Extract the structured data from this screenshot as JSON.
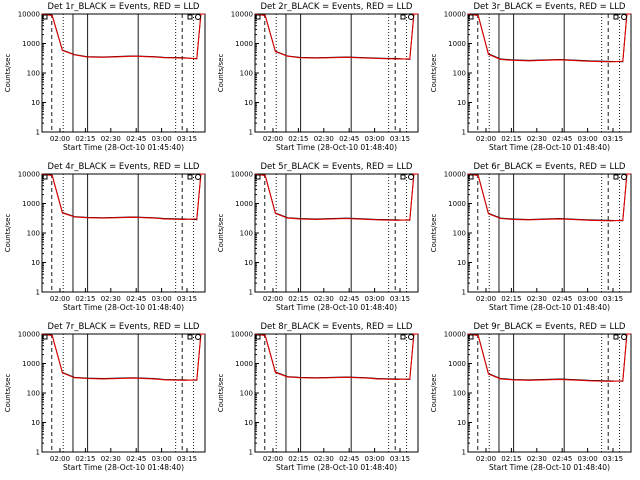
{
  "window": {
    "title": ""
  },
  "chart_data": [
    {
      "type": "line",
      "title": "Det 1r_BLACK = Events, RED = LLD",
      "xlabel": "Start Time (28-Oct-10 01:45:40)",
      "ylabel": "Counts/sec",
      "yscale": "log",
      "ylim": [
        1,
        10000
      ],
      "x_ticks": [
        "02:00",
        "02:15",
        "02:30",
        "02:45",
        "03:00",
        "03:15"
      ],
      "y_ticks": [
        "1",
        "10",
        "100",
        "1000",
        "10000"
      ],
      "series": [
        {
          "color": "#000000",
          "x": [
            0,
            5,
            10,
            16,
            22,
            30,
            45,
            55,
            60,
            70,
            76,
            78,
            80
          ],
          "y": [
            10000,
            9000,
            600,
            420,
            360,
            350,
            380,
            360,
            340,
            330,
            300,
            10000,
            10000
          ]
        },
        {
          "color": "#e00000",
          "x": [
            0,
            5,
            10,
            16,
            22,
            30,
            45,
            55,
            60,
            70,
            76,
            78,
            80
          ],
          "y": [
            10000,
            8800,
            580,
            410,
            350,
            340,
            370,
            350,
            330,
            320,
            310,
            10000,
            10000
          ]
        }
      ]
    },
    {
      "type": "line",
      "title": "Det 2r_BLACK = Events, RED = LLD",
      "xlabel": "Start Time (28-Oct-10 01:48:40)",
      "ylabel": "Counts/sec",
      "yscale": "log",
      "ylim": [
        1,
        10000
      ],
      "x_ticks": [
        "02:00",
        "02:15",
        "02:30",
        "02:45",
        "03:00",
        "03:15"
      ],
      "y_ticks": [
        "1",
        "10",
        "100",
        "1000",
        "10000"
      ],
      "series": [
        {
          "color": "#000000",
          "x": [
            0,
            5,
            10,
            16,
            22,
            30,
            45,
            55,
            60,
            70,
            76,
            78,
            80
          ],
          "y": [
            10000,
            9000,
            550,
            380,
            340,
            330,
            350,
            330,
            320,
            310,
            290,
            10000,
            10000
          ]
        },
        {
          "color": "#e00000",
          "x": [
            0,
            5,
            10,
            16,
            22,
            30,
            45,
            55,
            60,
            70,
            76,
            78,
            80
          ],
          "y": [
            10000,
            8800,
            530,
            370,
            330,
            320,
            340,
            320,
            310,
            300,
            300,
            10000,
            10000
          ]
        }
      ]
    },
    {
      "type": "line",
      "title": "Det 3r_BLACK = Events, RED = LLD",
      "xlabel": "Start Time (28-Oct-10 01:48:40)",
      "ylabel": "Counts/sec",
      "yscale": "log",
      "ylim": [
        1,
        10000
      ],
      "x_ticks": [
        "02:00",
        "02:15",
        "02:30",
        "02:45",
        "03:00",
        "03:15"
      ],
      "y_ticks": [
        "1",
        "10",
        "100",
        "1000",
        "10000"
      ],
      "series": [
        {
          "color": "#000000",
          "x": [
            0,
            5,
            10,
            16,
            22,
            30,
            45,
            55,
            60,
            70,
            76,
            78,
            80
          ],
          "y": [
            10000,
            9000,
            450,
            300,
            280,
            270,
            290,
            270,
            260,
            250,
            240,
            10000,
            10000
          ]
        },
        {
          "color": "#e00000",
          "x": [
            0,
            5,
            10,
            16,
            22,
            30,
            45,
            55,
            60,
            70,
            76,
            78,
            80
          ],
          "y": [
            10000,
            8800,
            430,
            290,
            270,
            260,
            280,
            260,
            250,
            240,
            250,
            10000,
            10000
          ]
        }
      ]
    },
    {
      "type": "line",
      "title": "Det 4r_BLACK = Events, RED = LLD",
      "xlabel": "Start Time (28-Oct-10 01:48:40)",
      "ylabel": "Counts/sec",
      "yscale": "log",
      "ylim": [
        1,
        10000
      ],
      "x_ticks": [
        "02:00",
        "02:15",
        "02:30",
        "02:45",
        "03:00",
        "03:15"
      ],
      "y_ticks": [
        "1",
        "10",
        "100",
        "1000",
        "10000"
      ],
      "series": [
        {
          "color": "#000000",
          "x": [
            0,
            5,
            10,
            16,
            22,
            30,
            45,
            55,
            60,
            70,
            76,
            78,
            80
          ],
          "y": [
            10000,
            9000,
            500,
            360,
            340,
            330,
            350,
            330,
            310,
            300,
            280,
            10000,
            10000
          ]
        },
        {
          "color": "#e00000",
          "x": [
            0,
            5,
            10,
            16,
            22,
            30,
            45,
            55,
            60,
            70,
            76,
            78,
            80
          ],
          "y": [
            10000,
            8800,
            480,
            350,
            330,
            320,
            340,
            320,
            300,
            290,
            300,
            10000,
            10000
          ]
        }
      ]
    },
    {
      "type": "line",
      "title": "Det 5r_BLACK = Events, RED = LLD",
      "xlabel": "Start Time (28-Oct-10 01:48:40)",
      "ylabel": "Counts/sec",
      "yscale": "log",
      "ylim": [
        1,
        10000
      ],
      "x_ticks": [
        "02:00",
        "02:15",
        "02:30",
        "02:45",
        "03:00",
        "03:15"
      ],
      "y_ticks": [
        "1",
        "10",
        "100",
        "1000",
        "10000"
      ],
      "series": [
        {
          "color": "#000000",
          "x": [
            0,
            5,
            10,
            16,
            22,
            30,
            45,
            55,
            60,
            70,
            76,
            78,
            80
          ],
          "y": [
            10000,
            9000,
            480,
            330,
            310,
            300,
            320,
            300,
            290,
            280,
            270,
            10000,
            10000
          ]
        },
        {
          "color": "#e00000",
          "x": [
            0,
            5,
            10,
            16,
            22,
            30,
            45,
            55,
            60,
            70,
            76,
            78,
            80
          ],
          "y": [
            10000,
            8800,
            460,
            320,
            300,
            290,
            310,
            290,
            280,
            270,
            280,
            10000,
            10000
          ]
        }
      ]
    },
    {
      "type": "line",
      "title": "Det 6r_BLACK = Events, RED = LLD",
      "xlabel": "Start Time (28-Oct-10 01:48:40)",
      "ylabel": "Counts/sec",
      "yscale": "log",
      "ylim": [
        1,
        10000
      ],
      "x_ticks": [
        "02:00",
        "02:15",
        "02:30",
        "02:45",
        "03:00",
        "03:15"
      ],
      "y_ticks": [
        "1",
        "10",
        "100",
        "1000",
        "10000"
      ],
      "series": [
        {
          "color": "#000000",
          "x": [
            0,
            5,
            10,
            16,
            22,
            30,
            45,
            55,
            60,
            70,
            76,
            78,
            80
          ],
          "y": [
            10000,
            9000,
            470,
            320,
            300,
            290,
            310,
            290,
            280,
            270,
            260,
            10000,
            10000
          ]
        },
        {
          "color": "#e00000",
          "x": [
            0,
            5,
            10,
            16,
            22,
            30,
            45,
            55,
            60,
            70,
            76,
            78,
            80
          ],
          "y": [
            10000,
            8800,
            450,
            310,
            290,
            280,
            300,
            280,
            270,
            260,
            270,
            10000,
            10000
          ]
        }
      ]
    },
    {
      "type": "line",
      "title": "Det 7r_BLACK = Events, RED = LLD",
      "xlabel": "Start Time (28-Oct-10 01:48:40)",
      "ylabel": "Counts/sec",
      "yscale": "log",
      "ylim": [
        1,
        10000
      ],
      "x_ticks": [
        "02:00",
        "02:15",
        "02:30",
        "02:45",
        "03:00",
        "03:15"
      ],
      "y_ticks": [
        "1",
        "10",
        "100",
        "1000",
        "10000"
      ],
      "series": [
        {
          "color": "#000000",
          "x": [
            0,
            5,
            10,
            16,
            22,
            30,
            45,
            55,
            60,
            70,
            76,
            78,
            80
          ],
          "y": [
            10000,
            9000,
            500,
            340,
            320,
            310,
            330,
            310,
            290,
            280,
            270,
            10000,
            10000
          ]
        },
        {
          "color": "#e00000",
          "x": [
            0,
            5,
            10,
            16,
            22,
            30,
            45,
            55,
            60,
            70,
            76,
            78,
            80
          ],
          "y": [
            10000,
            8800,
            480,
            330,
            310,
            300,
            320,
            300,
            280,
            270,
            280,
            10000,
            10000
          ]
        }
      ]
    },
    {
      "type": "line",
      "title": "Det 8r_BLACK = Events, RED = LLD",
      "xlabel": "Start Time (28-Oct-10 01:48:40)",
      "ylabel": "Counts/sec",
      "yscale": "log",
      "ylim": [
        1,
        10000
      ],
      "x_ticks": [
        "02:00",
        "02:15",
        "02:30",
        "02:45",
        "03:00",
        "03:15"
      ],
      "y_ticks": [
        "1",
        "10",
        "100",
        "1000",
        "10000"
      ],
      "series": [
        {
          "color": "#000000",
          "x": [
            0,
            5,
            10,
            16,
            22,
            30,
            45,
            55,
            60,
            70,
            76,
            78,
            80
          ],
          "y": [
            10000,
            9000,
            520,
            360,
            340,
            330,
            350,
            330,
            310,
            300,
            290,
            10000,
            10000
          ]
        },
        {
          "color": "#e00000",
          "x": [
            0,
            5,
            10,
            16,
            22,
            30,
            45,
            55,
            60,
            70,
            76,
            78,
            80
          ],
          "y": [
            10000,
            8800,
            500,
            350,
            330,
            320,
            340,
            320,
            300,
            290,
            300,
            10000,
            10000
          ]
        }
      ]
    },
    {
      "type": "line",
      "title": "Det 9r_BLACK = Events, RED = LLD",
      "xlabel": "Start Time (28-Oct-10 01:48:40)",
      "ylabel": "Counts/sec",
      "yscale": "log",
      "ylim": [
        1,
        10000
      ],
      "x_ticks": [
        "02:00",
        "02:15",
        "02:30",
        "02:45",
        "03:00",
        "03:15"
      ],
      "y_ticks": [
        "1",
        "10",
        "100",
        "1000",
        "10000"
      ],
      "series": [
        {
          "color": "#000000",
          "x": [
            0,
            5,
            10,
            16,
            22,
            30,
            45,
            55,
            60,
            70,
            76,
            78,
            80
          ],
          "y": [
            10000,
            9000,
            460,
            310,
            290,
            280,
            300,
            280,
            270,
            260,
            250,
            10000,
            10000
          ]
        },
        {
          "color": "#e00000",
          "x": [
            0,
            5,
            10,
            16,
            22,
            30,
            45,
            55,
            60,
            70,
            76,
            78,
            80
          ],
          "y": [
            10000,
            8800,
            440,
            300,
            280,
            270,
            290,
            270,
            260,
            250,
            260,
            10000,
            10000
          ]
        }
      ]
    }
  ]
}
